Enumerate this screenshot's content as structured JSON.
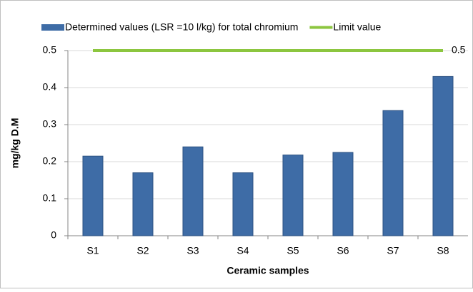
{
  "chart_data": {
    "type": "bar",
    "x_label": "Ceramic samples",
    "y_label": "mg/kg D.M",
    "categories": [
      "S1",
      "S2",
      "S3",
      "S4",
      "S5",
      "S6",
      "S7",
      "S8"
    ],
    "series": [
      {
        "name": "Determined values (LSR =10 l/kg) for total chromium",
        "type": "bar",
        "color": "#3e6ca6",
        "values": [
          0.215,
          0.17,
          0.24,
          0.17,
          0.218,
          0.225,
          0.338,
          0.43
        ]
      },
      {
        "name": "Limit value",
        "type": "line",
        "color": "#8cc63f",
        "values": [
          0.5,
          0.5,
          0.5,
          0.5,
          0.5,
          0.5,
          0.5,
          0.5
        ]
      }
    ],
    "ylim": [
      0,
      0.5
    ],
    "yticks": [
      0,
      0.1,
      0.2,
      0.3,
      0.4,
      0.5
    ],
    "grid": true,
    "legend": "top"
  }
}
